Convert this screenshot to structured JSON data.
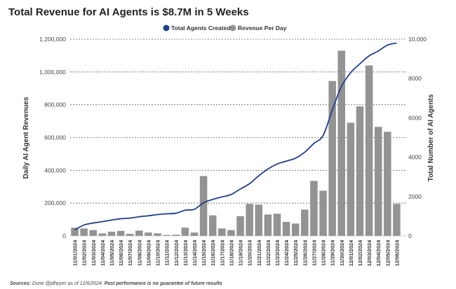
{
  "chart_data": {
    "type": "bar+line",
    "title": "Total Revenue for AI Agents is $8.7M in 5 Weeks",
    "ylabel": "Daily AI Agent Revenues",
    "y2label": "Total Number of AI Agents",
    "ylim": [
      0,
      1200000
    ],
    "y2lim": [
      0,
      10000
    ],
    "yticks": [
      "0",
      "200,000",
      "400,000",
      "600,000",
      "800,000",
      "1,000,000",
      "1,200,000"
    ],
    "y2ticks": [
      "0",
      "2000",
      "4000",
      "6000",
      "8000",
      "10,000"
    ],
    "grid": true,
    "legend_position": "top-center",
    "categories": [
      "11/01/2024",
      "11/02/2024",
      "11/03/2024",
      "11/04/2024",
      "11/05/2024",
      "11/06/2024",
      "11/07/2024",
      "11/08/2024",
      "11/09/2024",
      "11/10/2024",
      "11/11/2024",
      "11/12/2024",
      "11/13/2024",
      "11/14/2024",
      "11/15/2024",
      "11/16/2024",
      "11/17/2024",
      "11/18/2024",
      "11/19/2024",
      "11/20/2024",
      "11/21/2024",
      "11/22/2024",
      "11/23/2024",
      "11/24/2024",
      "11/25/2024",
      "11/26/2024",
      "11/27/2024",
      "11/28/2024",
      "11/29/2024",
      "11/30/2024",
      "12/01/2024",
      "12/02/2024",
      "12/03/2024",
      "12/04/2024",
      "12/05/2024",
      "12/06/2024"
    ],
    "series": [
      {
        "name": "Total Agents Created",
        "type": "line",
        "axis": "right",
        "color": "#1f3f8a",
        "values": [
          300,
          550,
          650,
          720,
          800,
          870,
          900,
          970,
          1020,
          1080,
          1120,
          1150,
          1300,
          1350,
          1680,
          1850,
          1980,
          2100,
          2380,
          2650,
          3050,
          3400,
          3650,
          3800,
          3950,
          4250,
          4700,
          5100,
          6400,
          7600,
          8300,
          8750,
          9150,
          9400,
          9700,
          9800
        ]
      },
      {
        "name": "Revenue Per Day",
        "type": "bar",
        "axis": "left",
        "color": "#939393",
        "values": [
          50000,
          45000,
          35000,
          15000,
          25000,
          30000,
          12000,
          32000,
          20000,
          15000,
          5000,
          7000,
          50000,
          20000,
          365000,
          125000,
          45000,
          35000,
          120000,
          195000,
          190000,
          130000,
          135000,
          85000,
          75000,
          160000,
          335000,
          275000,
          945000,
          1130000,
          690000,
          790000,
          1040000,
          665000,
          635000,
          195000
        ]
      }
    ]
  },
  "footer": {
    "sources_label": "Sources:",
    "sources_text": " Dune @jdhpyer as of 12/6/2024.",
    "disclaimer": " Past performance is no guarantee of future results"
  }
}
